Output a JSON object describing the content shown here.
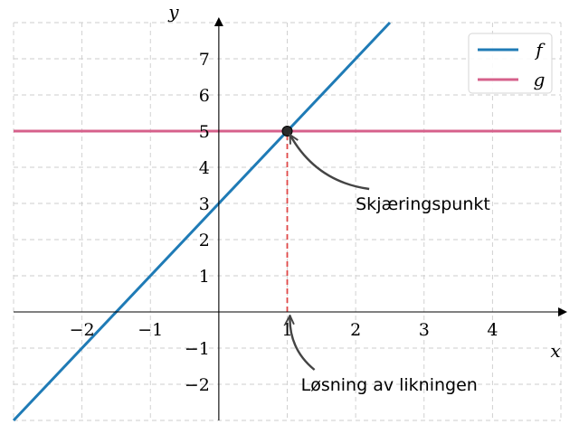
{
  "chart_data": {
    "type": "line",
    "title": "",
    "xlabel": "x",
    "ylabel": "y",
    "xlim": [
      -3,
      5
    ],
    "ylim": [
      -3,
      8
    ],
    "xticks": [
      -2,
      -1,
      1,
      2,
      3,
      4
    ],
    "yticks": [
      -2,
      -1,
      1,
      2,
      3,
      4,
      5,
      6,
      7
    ],
    "xtick_labels": [
      "−2",
      "−1",
      "1",
      "2",
      "3",
      "4"
    ],
    "ytick_labels": [
      "−2",
      "−1",
      "1",
      "2",
      "3",
      "4",
      "5",
      "6",
      "7"
    ],
    "grid": true,
    "legend_position": "top-right",
    "series": [
      {
        "name": "f",
        "color": "#1f7bb6",
        "x": [
          -3,
          5
        ],
        "y": [
          -3,
          13
        ]
      },
      {
        "name": "g",
        "color": "#d6608b",
        "x": [
          -3,
          5
        ],
        "y": [
          5,
          5
        ]
      }
    ],
    "intersection": {
      "x": 1,
      "y": 5
    },
    "vertical_guide": {
      "x": 1,
      "y_from": 0,
      "y_to": 5,
      "color": "#e04848"
    },
    "annotations": [
      {
        "text": "Skjæringspunkt",
        "points_to": [
          1,
          5
        ],
        "text_at": [
          2,
          3
        ]
      },
      {
        "text": "Løsning av likningen",
        "points_to": [
          1,
          0
        ],
        "text_at": [
          1.2,
          -2
        ]
      }
    ]
  }
}
